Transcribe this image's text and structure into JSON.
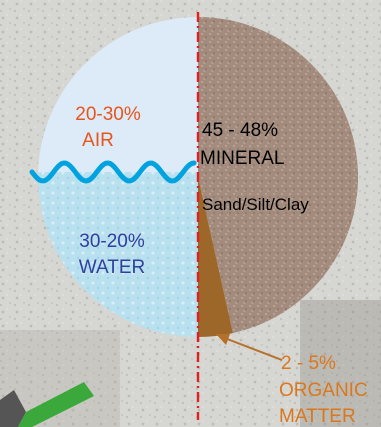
{
  "chart_data": {
    "type": "pie",
    "title": "",
    "slices": [
      {
        "label_range": "20-30%",
        "label_name": "AIR",
        "value": 25,
        "color": "#dcebf7",
        "text_color": "#e8541c"
      },
      {
        "label_range": "30-20%",
        "label_name": "WATER",
        "value": 25,
        "color": "#b9e0ee",
        "text_color": "#2f3f9e"
      },
      {
        "label_range": "45 - 48%",
        "label_name": "MINERAL",
        "sublabel": "Sand/Silt/Clay",
        "value": 46.5,
        "color": "#a38c7e",
        "text_color": "#000000"
      },
      {
        "label_range": "2 - 5%",
        "label_name": "ORGANIC MATTER",
        "label_lines": [
          "ORGANIC",
          "MATTER"
        ],
        "value": 3.5,
        "color": "#9c6728",
        "text_color": "#d9781e"
      }
    ],
    "colors": {
      "wave": "#00a3e0",
      "divider": "#e02020",
      "arrow": "#b5702a",
      "check_mark": "#3aa83a"
    }
  }
}
